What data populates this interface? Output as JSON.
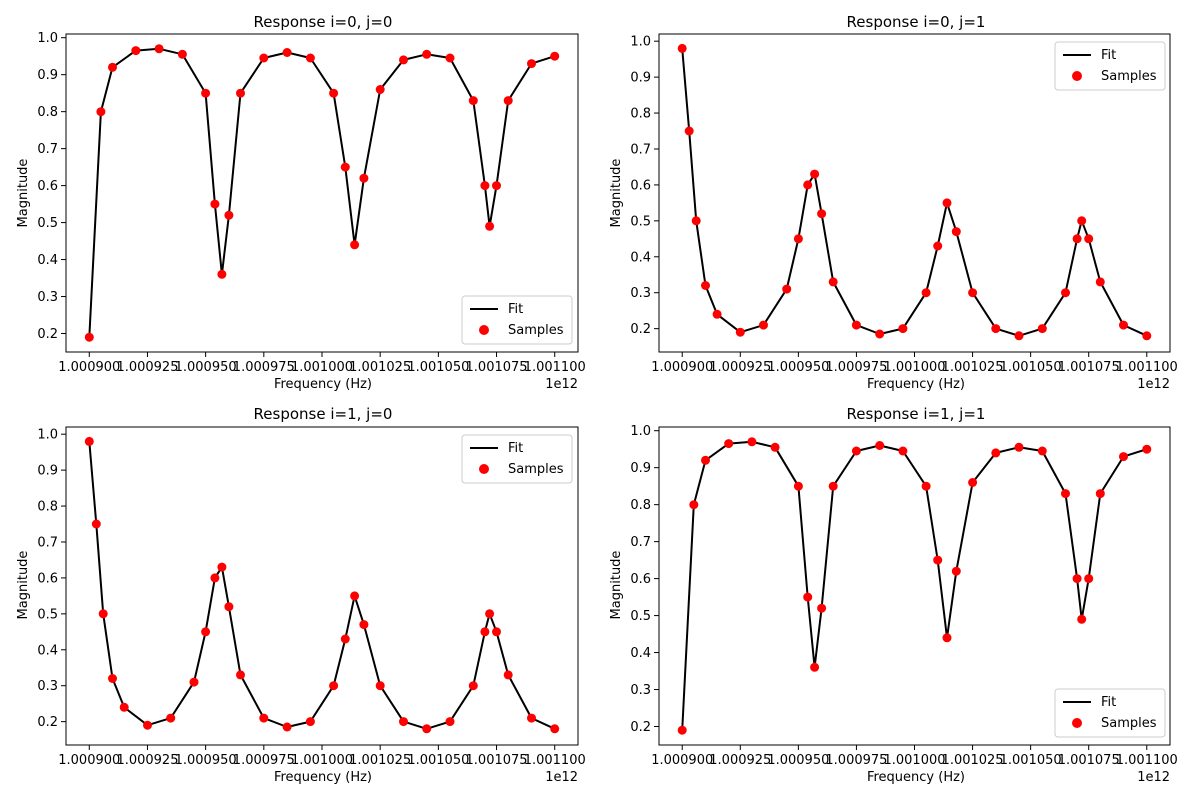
{
  "figure": {
    "panels": [
      {
        "title": "Response i=0, j=0",
        "xlabel": "Frequency (Hz)",
        "ylabel": "Magnitude",
        "offset_text": "1e12",
        "xlim": [
          1.00089,
          1.00111
        ],
        "ylim": [
          0.15,
          1.01
        ],
        "xticks": [
          1.0009,
          1.000925,
          1.00095,
          1.000975,
          1.001,
          1.001025,
          1.00105,
          1.001075,
          1.0011
        ],
        "xtick_labels": [
          "1.000900",
          "1.000925",
          "1.000950",
          "1.000975",
          "1.001000",
          "1.001025",
          "1.001050",
          "1.001075",
          "1.001100"
        ],
        "yticks": [
          0.2,
          0.3,
          0.4,
          0.5,
          0.6,
          0.7,
          0.8,
          0.9,
          1.0
        ],
        "ytick_labels": [
          "0.2",
          "0.3",
          "0.4",
          "0.5",
          "0.6",
          "0.7",
          "0.8",
          "0.9",
          "1.0"
        ],
        "legend": {
          "placement": "lower right",
          "entries": [
            "Fit",
            "Samples"
          ]
        }
      },
      {
        "title": "Response i=0, j=1",
        "xlabel": "Frequency (Hz)",
        "ylabel": "Magnitude",
        "offset_text": "1e12",
        "xlim": [
          1.00089,
          1.00111
        ],
        "ylim": [
          0.135,
          1.02
        ],
        "xticks": [
          1.0009,
          1.000925,
          1.00095,
          1.000975,
          1.001,
          1.001025,
          1.00105,
          1.001075,
          1.0011
        ],
        "xtick_labels": [
          "1.000900",
          "1.000925",
          "1.000950",
          "1.000975",
          "1.001000",
          "1.001025",
          "1.001050",
          "1.001075",
          "1.001100"
        ],
        "yticks": [
          0.2,
          0.3,
          0.4,
          0.5,
          0.6,
          0.7,
          0.8,
          0.9,
          1.0
        ],
        "ytick_labels": [
          "0.2",
          "0.3",
          "0.4",
          "0.5",
          "0.6",
          "0.7",
          "0.8",
          "0.9",
          "1.0"
        ],
        "legend": {
          "placement": "upper right",
          "entries": [
            "Fit",
            "Samples"
          ]
        }
      },
      {
        "title": "Response i=1, j=0",
        "xlabel": "Frequency (Hz)",
        "ylabel": "Magnitude",
        "offset_text": "1e12",
        "xlim": [
          1.00089,
          1.00111
        ],
        "ylim": [
          0.135,
          1.02
        ],
        "xticks": [
          1.0009,
          1.000925,
          1.00095,
          1.000975,
          1.001,
          1.001025,
          1.00105,
          1.001075,
          1.0011
        ],
        "xtick_labels": [
          "1.000900",
          "1.000925",
          "1.000950",
          "1.000975",
          "1.001000",
          "1.001025",
          "1.001050",
          "1.001075",
          "1.001100"
        ],
        "yticks": [
          0.2,
          0.3,
          0.4,
          0.5,
          0.6,
          0.7,
          0.8,
          0.9,
          1.0
        ],
        "ytick_labels": [
          "0.2",
          "0.3",
          "0.4",
          "0.5",
          "0.6",
          "0.7",
          "0.8",
          "0.9",
          "1.0"
        ],
        "legend": {
          "placement": "upper right",
          "entries": [
            "Fit",
            "Samples"
          ]
        }
      },
      {
        "title": "Response i=1, j=1",
        "xlabel": "Frequency (Hz)",
        "ylabel": "Magnitude",
        "offset_text": "1e12",
        "xlim": [
          1.00089,
          1.00111
        ],
        "ylim": [
          0.15,
          1.01
        ],
        "xticks": [
          1.0009,
          1.000925,
          1.00095,
          1.000975,
          1.001,
          1.001025,
          1.00105,
          1.001075,
          1.0011
        ],
        "xtick_labels": [
          "1.000900",
          "1.000925",
          "1.000950",
          "1.000975",
          "1.001000",
          "1.001025",
          "1.001050",
          "1.001075",
          "1.001100"
        ],
        "yticks": [
          0.2,
          0.3,
          0.4,
          0.5,
          0.6,
          0.7,
          0.8,
          0.9,
          1.0
        ],
        "ytick_labels": [
          "0.2",
          "0.3",
          "0.4",
          "0.5",
          "0.6",
          "0.7",
          "0.8",
          "0.9",
          "1.0"
        ],
        "legend": {
          "placement": "lower right",
          "entries": [
            "Fit",
            "Samples"
          ]
        }
      }
    ]
  },
  "colors": {
    "fit": "#000000",
    "samples": "#ff0000",
    "axes": "#000000",
    "background": "#ffffff"
  },
  "chart_data": [
    {
      "type": "line",
      "title": "Response i=0, j=0",
      "xlabel": "Frequency (Hz)",
      "ylabel": "Magnitude",
      "x_multiplier": "1e12",
      "series": [
        {
          "name": "Fit",
          "style": "line",
          "x": [
            1.0009,
            1.000905,
            1.00091,
            1.00092,
            1.00093,
            1.00094,
            1.00095,
            1.000954,
            1.000957,
            1.00096,
            1.000965,
            1.000975,
            1.000985,
            1.000995,
            1.001005,
            1.00101,
            1.001014,
            1.001018,
            1.001025,
            1.001035,
            1.001045,
            1.001055,
            1.001065,
            1.00107,
            1.001072,
            1.001075,
            1.00108,
            1.00109,
            1.0011
          ],
          "y": [
            0.19,
            0.8,
            0.92,
            0.965,
            0.97,
            0.955,
            0.85,
            0.55,
            0.36,
            0.52,
            0.85,
            0.945,
            0.96,
            0.945,
            0.85,
            0.65,
            0.44,
            0.62,
            0.86,
            0.94,
            0.955,
            0.945,
            0.83,
            0.6,
            0.49,
            0.6,
            0.83,
            0.93,
            0.95
          ]
        },
        {
          "name": "Samples",
          "style": "scatter",
          "x": [
            1.0009,
            1.000905,
            1.00091,
            1.00092,
            1.00093,
            1.00094,
            1.00095,
            1.000954,
            1.000957,
            1.00096,
            1.000965,
            1.000975,
            1.000985,
            1.000995,
            1.001005,
            1.00101,
            1.001014,
            1.001018,
            1.001025,
            1.001035,
            1.001045,
            1.001055,
            1.001065,
            1.00107,
            1.001072,
            1.001075,
            1.00108,
            1.00109,
            1.0011
          ],
          "y": [
            0.19,
            0.8,
            0.92,
            0.965,
            0.97,
            0.955,
            0.85,
            0.55,
            0.36,
            0.52,
            0.85,
            0.945,
            0.96,
            0.945,
            0.85,
            0.65,
            0.44,
            0.62,
            0.86,
            0.94,
            0.955,
            0.945,
            0.83,
            0.6,
            0.49,
            0.6,
            0.83,
            0.93,
            0.95
          ]
        }
      ],
      "xlim": [
        1.00089,
        1.00111
      ],
      "ylim": [
        0.15,
        1.01
      ],
      "legend": "lower right",
      "grid": false
    },
    {
      "type": "line",
      "title": "Response i=0, j=1",
      "xlabel": "Frequency (Hz)",
      "ylabel": "Magnitude",
      "x_multiplier": "1e12",
      "series": [
        {
          "name": "Fit",
          "style": "line",
          "x": [
            1.0009,
            1.000903,
            1.000906,
            1.00091,
            1.000915,
            1.000925,
            1.000935,
            1.000945,
            1.00095,
            1.000954,
            1.000957,
            1.00096,
            1.000965,
            1.000975,
            1.000985,
            1.000995,
            1.001005,
            1.00101,
            1.001014,
            1.001018,
            1.001025,
            1.001035,
            1.001045,
            1.001055,
            1.001065,
            1.00107,
            1.001072,
            1.001075,
            1.00108,
            1.00109,
            1.0011
          ],
          "y": [
            0.98,
            0.75,
            0.5,
            0.32,
            0.24,
            0.19,
            0.21,
            0.31,
            0.45,
            0.6,
            0.63,
            0.52,
            0.33,
            0.21,
            0.185,
            0.2,
            0.3,
            0.43,
            0.55,
            0.47,
            0.3,
            0.2,
            0.18,
            0.2,
            0.3,
            0.45,
            0.5,
            0.45,
            0.33,
            0.21,
            0.18
          ]
        },
        {
          "name": "Samples",
          "style": "scatter",
          "x": [
            1.0009,
            1.000903,
            1.000906,
            1.00091,
            1.000915,
            1.000925,
            1.000935,
            1.000945,
            1.00095,
            1.000954,
            1.000957,
            1.00096,
            1.000965,
            1.000975,
            1.000985,
            1.000995,
            1.001005,
            1.00101,
            1.001014,
            1.001018,
            1.001025,
            1.001035,
            1.001045,
            1.001055,
            1.001065,
            1.00107,
            1.001072,
            1.001075,
            1.00108,
            1.00109,
            1.0011
          ],
          "y": [
            0.98,
            0.75,
            0.5,
            0.32,
            0.24,
            0.19,
            0.21,
            0.31,
            0.45,
            0.6,
            0.63,
            0.52,
            0.33,
            0.21,
            0.185,
            0.2,
            0.3,
            0.43,
            0.55,
            0.47,
            0.3,
            0.2,
            0.18,
            0.2,
            0.3,
            0.45,
            0.5,
            0.45,
            0.33,
            0.21,
            0.18
          ]
        }
      ],
      "xlim": [
        1.00089,
        1.00111
      ],
      "ylim": [
        0.135,
        1.02
      ],
      "legend": "upper right",
      "grid": false
    },
    {
      "type": "line",
      "title": "Response i=1, j=0",
      "xlabel": "Frequency (Hz)",
      "ylabel": "Magnitude",
      "x_multiplier": "1e12",
      "series": [
        {
          "name": "Fit",
          "style": "line",
          "x": [
            1.0009,
            1.000903,
            1.000906,
            1.00091,
            1.000915,
            1.000925,
            1.000935,
            1.000945,
            1.00095,
            1.000954,
            1.000957,
            1.00096,
            1.000965,
            1.000975,
            1.000985,
            1.000995,
            1.001005,
            1.00101,
            1.001014,
            1.001018,
            1.001025,
            1.001035,
            1.001045,
            1.001055,
            1.001065,
            1.00107,
            1.001072,
            1.001075,
            1.00108,
            1.00109,
            1.0011
          ],
          "y": [
            0.98,
            0.75,
            0.5,
            0.32,
            0.24,
            0.19,
            0.21,
            0.31,
            0.45,
            0.6,
            0.63,
            0.52,
            0.33,
            0.21,
            0.185,
            0.2,
            0.3,
            0.43,
            0.55,
            0.47,
            0.3,
            0.2,
            0.18,
            0.2,
            0.3,
            0.45,
            0.5,
            0.45,
            0.33,
            0.21,
            0.18
          ]
        },
        {
          "name": "Samples",
          "style": "scatter",
          "x": [
            1.0009,
            1.000903,
            1.000906,
            1.00091,
            1.000915,
            1.000925,
            1.000935,
            1.000945,
            1.00095,
            1.000954,
            1.000957,
            1.00096,
            1.000965,
            1.000975,
            1.000985,
            1.000995,
            1.001005,
            1.00101,
            1.001014,
            1.001018,
            1.001025,
            1.001035,
            1.001045,
            1.001055,
            1.001065,
            1.00107,
            1.001072,
            1.001075,
            1.00108,
            1.00109,
            1.0011
          ],
          "y": [
            0.98,
            0.75,
            0.5,
            0.32,
            0.24,
            0.19,
            0.21,
            0.31,
            0.45,
            0.6,
            0.63,
            0.52,
            0.33,
            0.21,
            0.185,
            0.2,
            0.3,
            0.43,
            0.55,
            0.47,
            0.3,
            0.2,
            0.18,
            0.2,
            0.3,
            0.45,
            0.5,
            0.45,
            0.33,
            0.21,
            0.18
          ]
        }
      ],
      "xlim": [
        1.00089,
        1.00111
      ],
      "ylim": [
        0.135,
        1.02
      ],
      "legend": "upper right",
      "grid": false
    },
    {
      "type": "line",
      "title": "Response i=1, j=1",
      "xlabel": "Frequency (Hz)",
      "ylabel": "Magnitude",
      "x_multiplier": "1e12",
      "series": [
        {
          "name": "Fit",
          "style": "line",
          "x": [
            1.0009,
            1.000905,
            1.00091,
            1.00092,
            1.00093,
            1.00094,
            1.00095,
            1.000954,
            1.000957,
            1.00096,
            1.000965,
            1.000975,
            1.000985,
            1.000995,
            1.001005,
            1.00101,
            1.001014,
            1.001018,
            1.001025,
            1.001035,
            1.001045,
            1.001055,
            1.001065,
            1.00107,
            1.001072,
            1.001075,
            1.00108,
            1.00109,
            1.0011
          ],
          "y": [
            0.19,
            0.8,
            0.92,
            0.965,
            0.97,
            0.955,
            0.85,
            0.55,
            0.36,
            0.52,
            0.85,
            0.945,
            0.96,
            0.945,
            0.85,
            0.65,
            0.44,
            0.62,
            0.86,
            0.94,
            0.955,
            0.945,
            0.83,
            0.6,
            0.49,
            0.6,
            0.83,
            0.93,
            0.95
          ]
        },
        {
          "name": "Samples",
          "style": "scatter",
          "x": [
            1.0009,
            1.000905,
            1.00091,
            1.00092,
            1.00093,
            1.00094,
            1.00095,
            1.000954,
            1.000957,
            1.00096,
            1.000965,
            1.000975,
            1.000985,
            1.000995,
            1.001005,
            1.00101,
            1.001014,
            1.001018,
            1.001025,
            1.001035,
            1.001045,
            1.001055,
            1.001065,
            1.00107,
            1.001072,
            1.001075,
            1.00108,
            1.00109,
            1.0011
          ],
          "y": [
            0.19,
            0.8,
            0.92,
            0.965,
            0.97,
            0.955,
            0.85,
            0.55,
            0.36,
            0.52,
            0.85,
            0.945,
            0.96,
            0.945,
            0.85,
            0.65,
            0.44,
            0.62,
            0.86,
            0.94,
            0.955,
            0.945,
            0.83,
            0.6,
            0.49,
            0.6,
            0.83,
            0.93,
            0.95
          ]
        }
      ],
      "xlim": [
        1.00089,
        1.00111
      ],
      "ylim": [
        0.15,
        1.01
      ],
      "legend": "lower right",
      "grid": false
    }
  ]
}
